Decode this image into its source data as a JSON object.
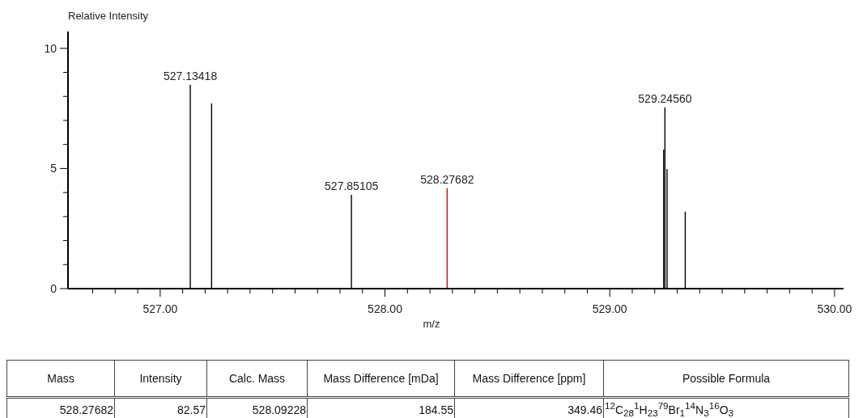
{
  "chart_data": {
    "type": "bar",
    "xlabel": "m/z",
    "ylabel": "Relative Intensity",
    "x": [
      527.13418,
      527.229,
      527.85105,
      528.27682,
      529.24,
      529.2456,
      529.255,
      529.336
    ],
    "values": [
      8.48,
      7.71,
      3.9,
      4.18,
      5.79,
      7.54,
      4.98,
      3.2
    ],
    "colors": [
      "#000000",
      "#000000",
      "#000000",
      "#e00000",
      "#000000",
      "#000000",
      "#000000",
      "#000000"
    ],
    "xlim": [
      526.59,
      530.04
    ],
    "xticks": [
      {
        "value": 526.7,
        "label": null
      },
      {
        "value": 526.8,
        "label": null
      },
      {
        "value": 526.9,
        "label": null
      },
      {
        "value": 527,
        "label": "527.00"
      },
      {
        "value": 527.1,
        "label": null
      },
      {
        "value": 527.2,
        "label": null
      },
      {
        "value": 527.3,
        "label": null
      },
      {
        "value": 527.4,
        "label": null
      },
      {
        "value": 527.5,
        "label": null
      },
      {
        "value": 527.6,
        "label": null
      },
      {
        "value": 527.7,
        "label": null
      },
      {
        "value": 527.8,
        "label": null
      },
      {
        "value": 527.9,
        "label": null
      },
      {
        "value": 528,
        "label": "528.00"
      },
      {
        "value": 528.1,
        "label": null
      },
      {
        "value": 528.2,
        "label": null
      },
      {
        "value": 528.3,
        "label": null
      },
      {
        "value": 528.4,
        "label": null
      },
      {
        "value": 528.5,
        "label": null
      },
      {
        "value": 528.6,
        "label": null
      },
      {
        "value": 528.7,
        "label": null
      },
      {
        "value": 528.8,
        "label": null
      },
      {
        "value": 528.9,
        "label": null
      },
      {
        "value": 529,
        "label": "529.00"
      },
      {
        "value": 529.1,
        "label": null
      },
      {
        "value": 529.2,
        "label": null
      },
      {
        "value": 529.3,
        "label": null
      },
      {
        "value": 529.4,
        "label": null
      },
      {
        "value": 529.5,
        "label": null
      },
      {
        "value": 529.6,
        "label": null
      },
      {
        "value": 529.7,
        "label": null
      },
      {
        "value": 529.8,
        "label": null
      },
      {
        "value": 529.9,
        "label": null
      },
      {
        "value": 530,
        "label": "530.00"
      }
    ],
    "ylim": [
      0,
      10.7
    ],
    "yticks": [
      0,
      {
        "value": 1,
        "label": null
      },
      {
        "value": 2,
        "label": null
      },
      {
        "value": 3,
        "label": null
      },
      {
        "value": 4,
        "label": null
      },
      5,
      {
        "value": 6,
        "label": null
      },
      {
        "value": 7,
        "label": null
      },
      {
        "value": 8,
        "label": null
      },
      {
        "value": 9,
        "label": null
      },
      10
    ],
    "grid": false,
    "legend": false,
    "annotations": [
      {
        "text": "527.13418",
        "x": 527.13418,
        "y": 8.48
      },
      {
        "text": "527.85105",
        "x": 527.85105,
        "y": 3.9
      },
      {
        "text": "528.27682",
        "x": 528.27682,
        "y": 4.18
      },
      {
        "text": "529.24560",
        "x": 529.2456,
        "y": 7.54
      },
      "Mass",
      "Intensity",
      "Calc. Mass",
      "Mass Difference [mDa]",
      "Mass Difference [ppm]",
      "Possible Formula",
      "528.27682",
      "82.57",
      "528.09228",
      "184.55",
      "349.46",
      "$^{12}$C$_{28}$$^{1}$H$_{23}$$^{79}$Br$_{1}$$^{14}$N$_{3}$$^{16}$O$_{3}$"
    ]
  }
}
